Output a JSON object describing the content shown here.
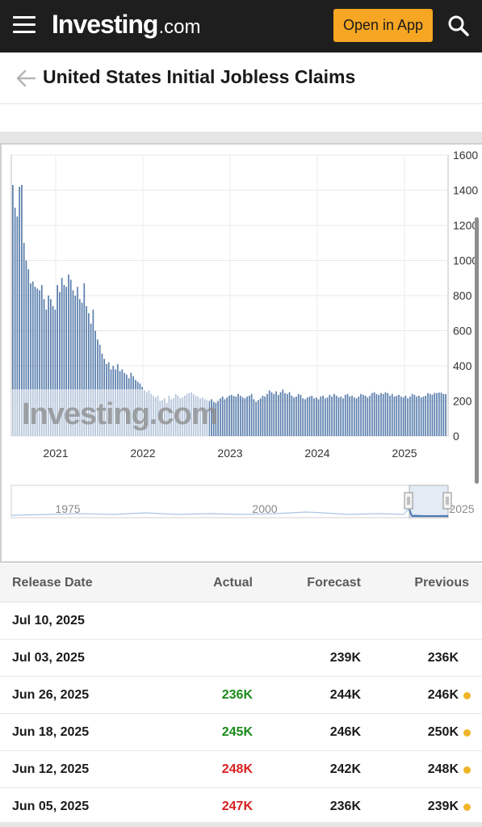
{
  "header": {
    "logo_main": "Investing",
    "logo_sub": ".com",
    "open_app_label": "Open in App"
  },
  "page": {
    "title": "United States Initial Jobless Claims"
  },
  "chart_data": {
    "type": "bar",
    "watermark": "Investing.com",
    "y_ticks": [
      "1600",
      "1400",
      "1200",
      "1000",
      "800",
      "600",
      "400",
      "200",
      "0"
    ],
    "ylim": [
      0,
      1600
    ],
    "x_ticks": [
      "2021",
      "2022",
      "2023",
      "2024",
      "2025"
    ],
    "grid": true,
    "navigator_ticks": [
      "1975",
      "2000",
      "2025"
    ],
    "series": [
      {
        "color": "#5b7fad",
        "values": [
          1430,
          1300,
          1250,
          1420,
          1430,
          1100,
          1000,
          950,
          870,
          880,
          850,
          840,
          830,
          860,
          780,
          720,
          800,
          780,
          740,
          720,
          860,
          820,
          900,
          860,
          850,
          920,
          890,
          830,
          800,
          850,
          780,
          760,
          870,
          740,
          700,
          640,
          720,
          600,
          550,
          520,
          470,
          440,
          410,
          420,
          380,
          400,
          380,
          410,
          370,
          380,
          360,
          350,
          330,
          360,
          340,
          320,
          310,
          300,
          280,
          260,
          250,
          260,
          240,
          230,
          220,
          230,
          200,
          205,
          215,
          190,
          230,
          210,
          215,
          240,
          230,
          215,
          220,
          230,
          240,
          245,
          250,
          240,
          230,
          225,
          215,
          220,
          210,
          205,
          200,
          210,
          195,
          190,
          200,
          215,
          225,
          210,
          220,
          230,
          235,
          228,
          225,
          240,
          230,
          220,
          215,
          225,
          230,
          240,
          210,
          195,
          205,
          215,
          230,
          225,
          240,
          260,
          250,
          240,
          255,
          235,
          250,
          265,
          245,
          240,
          250,
          230,
          220,
          225,
          240,
          235,
          215,
          210,
          220,
          225,
          230,
          215,
          220,
          210,
          225,
          230,
          215,
          220,
          235,
          225,
          240,
          230,
          220,
          225,
          215,
          235,
          240,
          225,
          230,
          220,
          215,
          225,
          240,
          235,
          230,
          220,
          230,
          245,
          250,
          240,
          235,
          245,
          240,
          250,
          245,
          230,
          240,
          225,
          230,
          235,
          225,
          220,
          230,
          215,
          225,
          240,
          235,
          225,
          230,
          220,
          225,
          230,
          245,
          240,
          236,
          246,
          245,
          248,
          247,
          239,
          240
        ]
      }
    ]
  },
  "table": {
    "headers": {
      "release_date": "Release Date",
      "actual": "Actual",
      "forecast": "Forecast",
      "previous": "Previous"
    },
    "rows": [
      {
        "date": "Jul 10, 2025",
        "actual": "",
        "forecast": "",
        "previous": ""
      },
      {
        "date": "Jul 03, 2025",
        "actual": "",
        "forecast": "239K",
        "previous": "236K"
      },
      {
        "date": "Jun 26, 2025",
        "actual": "236K",
        "forecast": "244K",
        "previous": "246K"
      },
      {
        "date": "Jun 18, 2025",
        "actual": "245K",
        "forecast": "246K",
        "previous": "250K"
      },
      {
        "date": "Jun 12, 2025",
        "actual": "248K",
        "forecast": "242K",
        "previous": "248K"
      },
      {
        "date": "Jun 05, 2025",
        "actual": "247K",
        "forecast": "236K",
        "previous": "239K"
      }
    ]
  },
  "colors": {
    "topbar": "#1e1e1e",
    "accent": "#f6a623",
    "positive": "#1a8a1a",
    "negative": "#d62020",
    "revised_dot": "#f0b429"
  }
}
